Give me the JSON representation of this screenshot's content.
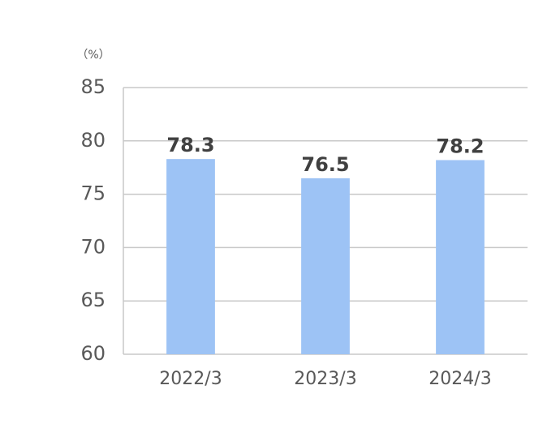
{
  "chart_data": {
    "type": "bar",
    "unit": "（%）",
    "categories": [
      "2022/3",
      "2023/3",
      "2024/3"
    ],
    "values": [
      78.3,
      76.5,
      78.2
    ],
    "color": "#9dc3f5",
    "ylim": [
      60,
      85
    ],
    "yticks": [
      60,
      65,
      70,
      75,
      80,
      85
    ],
    "grid": true
  }
}
